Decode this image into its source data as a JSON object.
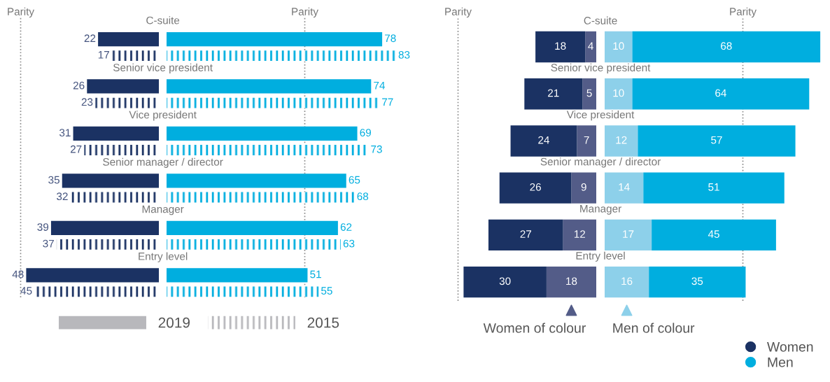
{
  "chart_data": [
    {
      "type": "bar",
      "orientation": "horizontal",
      "categories": [
        "C-suite",
        "Senior vice president",
        "Vice president",
        "Senior manager / director",
        "Manager",
        "Entry level"
      ],
      "data_labels": true,
      "legend": "bottom",
      "series": [
        {
          "name": "2019",
          "color": "#1b3263",
          "values": [
            22,
            26,
            31,
            35,
            39,
            48
          ]
        },
        {
          "name": "2015",
          "color": "#1b3263",
          "values": [
            17,
            23,
            27,
            32,
            37,
            45
          ]
        }
      ],
      "ref_lines": [
        {
          "axis": "x",
          "value": 50,
          "label": "Parity",
          "color": "#8a8a8a",
          "line_style": "dotted"
        }
      ]
    },
    {
      "type": "bar",
      "orientation": "horizontal",
      "categories": [
        null,
        null,
        null,
        null,
        null,
        null
      ],
      "data_labels": true,
      "series": [
        {
          "color": "#00aedf",
          "values": [
            78,
            74,
            69,
            65,
            62,
            51
          ]
        },
        {
          "color": "#00aedf",
          "values": [
            83,
            77,
            73,
            68,
            63,
            55
          ]
        }
      ],
      "ref_lines": [
        {
          "axis": "x",
          "value": 50,
          "label": "Parity",
          "color": "#8a8a8a",
          "line_style": "dotted"
        }
      ]
    },
    {
      "type": "bar",
      "orientation": "horizontal",
      "stacked": true,
      "categories": [
        "C-suite",
        "Senior vice president",
        "Vice president",
        "Senior manager / director",
        "Manager",
        "Entry level"
      ],
      "data_labels": true,
      "legend": "bottom right",
      "series": [
        {
          "name": "Women of colour",
          "marker": "triangle",
          "color": "#535c88",
          "values": [
            4,
            5,
            7,
            9,
            12,
            18
          ]
        },
        {
          "name": "Women",
          "marker": "circle",
          "color": "#1b3263",
          "values": [
            18,
            21,
            24,
            26,
            27,
            30
          ]
        }
      ],
      "ref_lines": [
        {
          "axis": "x",
          "value": 50,
          "label": "Parity",
          "color": "#8a8a8a",
          "line_style": "dotted"
        }
      ]
    },
    {
      "type": "bar",
      "orientation": "horizontal",
      "stacked": true,
      "categories": [
        null,
        null,
        null,
        null,
        null,
        null
      ],
      "data_labels": true,
      "legend": "bottom right",
      "series": [
        {
          "name": "Men of colour",
          "marker": "triangle",
          "color": "#8dd0ea",
          "values": [
            10,
            10,
            12,
            14,
            17,
            16
          ]
        },
        {
          "name": "Men",
          "marker": "circle",
          "color": "#00aedf",
          "values": [
            68,
            64,
            57,
            51,
            45,
            35
          ]
        }
      ],
      "ref_lines": [
        {
          "axis": "x",
          "value": 50,
          "label": "Parity",
          "color": "#8a8a8a",
          "line_style": "dotted"
        }
      ]
    }
  ]
}
